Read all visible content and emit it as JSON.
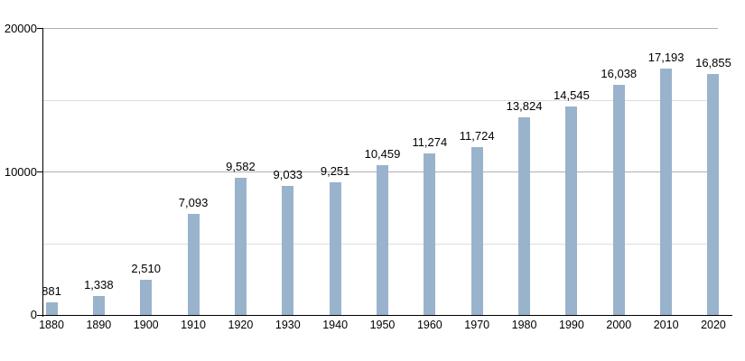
{
  "chart_data": {
    "type": "bar",
    "title": "",
    "xlabel": "",
    "ylabel": "",
    "categories": [
      "1880",
      "1890",
      "1900",
      "1910",
      "1920",
      "1930",
      "1940",
      "1950",
      "1960",
      "1970",
      "1980",
      "1990",
      "2000",
      "2010",
      "2020"
    ],
    "values": [
      881,
      1338,
      2510,
      7093,
      9582,
      9033,
      9251,
      10459,
      11274,
      11724,
      13824,
      14545,
      16038,
      17193,
      16855
    ],
    "value_labels": [
      "881",
      "1,338",
      "2,510",
      "7,093",
      "9,582",
      "9,033",
      "9,251",
      "10,459",
      "11,274",
      "11,724",
      "13,824",
      "14,545",
      "16,038",
      "17,193",
      "16,855"
    ],
    "ylim": [
      0,
      20000
    ],
    "y_tick_labels": {
      "t0": "0",
      "t10000": "10000",
      "t20000": "20000"
    },
    "y_major_gridlines": [
      10000,
      20000
    ],
    "y_minor_gridlines": [
      5000,
      15000
    ],
    "y_ticked_values": [
      0,
      10000,
      20000
    ],
    "grid": true,
    "legend": "none",
    "colors": {
      "bar": "#99b3cc",
      "major_gridline": "#b0b0b0",
      "minor_gridline": "#dddddd",
      "axis": "#000000",
      "text": "#000000",
      "background": "#ffffff"
    }
  }
}
